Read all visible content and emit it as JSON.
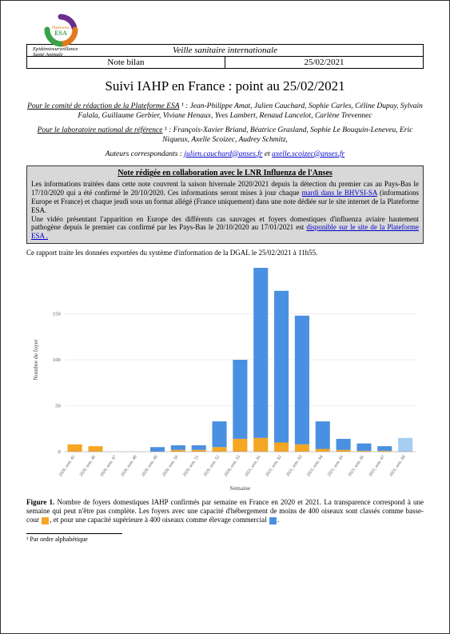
{
  "header": {
    "org_lines": [
      "Epidémiosurveillance",
      "Santé Animale"
    ],
    "row1": "Veille sanitaire internationale",
    "row2_left": "Note bilan",
    "row2_right": "25/02/2021"
  },
  "logo": {
    "ring_colors": [
      "#6a2e8f",
      "#e07b1e",
      "#3aa24a"
    ],
    "label": "Plateforme",
    "label2": "ESA"
  },
  "title": "Suivi IAHP en France : point au 25/02/2021",
  "intro": {
    "committee_label": "Pour le comité de rédaction de la Plateforme ESA",
    "committee_names": " ¹ : Jean-Philippe Amat, Julien Cauchard, Sophie Carles, Céline Dupuy, Sylvain Falala, Guillaume Gerbier, Viviane Henaux, Yves Lambert, Renaud Lancelot, Carlène Trevennec",
    "lab_label": "Pour le laboratoire national de référence",
    "lab_names": " ¹ : François-Xavier Briand, Béatrice Grasland, Sophie Le Bouquin-Leneveu, Eric Niqueux, Axelle Scoizec, Audrey Schmitz,",
    "authors_label": "Auteurs correspondants : ",
    "email1": "julien.cauchard@anses.fr",
    "and": " et ",
    "email2": "axelle.scoizec@anses.fr"
  },
  "note_box": {
    "title": "Note rédigée en collaboration avec le LNR Influenza de l'Anses",
    "p1a": "Les informations traitées dans cette note couvrent la saison hivernale 2020/2021 depuis la détection du premier cas au Pays-Bas le 17/10/2020 qui a été confirmé le 20/10/2020. Ces informations seront mises à jour chaque ",
    "p1_link1_text": "mardi dans le BHVSI-SA",
    "p1b": " (informations Europe et France) et chaque jeudi sous un format allégé (France uniquement) dans une note dédiée sur le site internet de la Plateforme ESA.",
    "p2a": "Une vidéo présentant l'apparition en Europe des différents cas sauvages et foyers domestiques d'influenza aviaire hautement pathogène depuis le premier cas confirmé par les Pays-Bas le 20/10/2020 au 17/01/2021 est ",
    "p2_link_text": "disponible sur le site de la Plateforme ESA .",
    "p2b": ""
  },
  "export_line": "Ce rapport traite les données exportées du système d'information de la DGAL le 25/02/2021 à 11h55.",
  "chart": {
    "type": "stacked-bar",
    "background_color": "#ffffff",
    "grid_color": "#dddddd",
    "bar_colors": {
      "basse_cour": "#f5a623",
      "elevage": "#4a90e2",
      "incomplete": "#a7cdf0"
    },
    "ylabel": "Nombre de foyer",
    "xlabel": "Semaine",
    "ylim": [
      0,
      200
    ],
    "yticks": [
      0,
      50,
      100,
      150
    ],
    "categories": [
      "2020, sem. 45",
      "2020, sem. 46",
      "2020, sem. 47",
      "2020, sem. 48",
      "2020, sem. 49",
      "2020, sem. 50",
      "2020, sem. 51",
      "2020, sem. 52",
      "2020, sem. 53",
      "2021, sem. 01",
      "2021, sem. 02",
      "2021, sem. 03",
      "2021, sem. 04",
      "2021, sem. 05",
      "2021, sem. 06",
      "2021, sem. 07",
      "2021, sem. 08"
    ],
    "basse_cour": [
      8,
      6,
      0,
      0,
      0,
      2,
      2,
      5,
      14,
      15,
      10,
      8,
      3,
      2,
      1,
      1,
      0
    ],
    "elevage": [
      0,
      0,
      0,
      0,
      5,
      5,
      5,
      28,
      86,
      185,
      165,
      140,
      30,
      12,
      8,
      5,
      0
    ],
    "incomplete": [
      0,
      0,
      0,
      0,
      0,
      0,
      0,
      0,
      0,
      0,
      0,
      0,
      0,
      0,
      0,
      0,
      15
    ]
  },
  "figure_caption": {
    "lead": "Figure 1.",
    "text1": " Nombre de foyers domestiques IAHP confirmés par semaine en France en 2020 et 2021. La transparence correspond à une semaine qui peut n'être pas complète. Les foyers avec une capacité d'hébergement de moins de 400 oiseaux sont classés comme basse-cour",
    "text2": ", et pour une capacité supérieure à 400 oiseaux comme élevage commercial",
    "text3": "."
  },
  "footnote": "¹ Par ordre alphabétique"
}
